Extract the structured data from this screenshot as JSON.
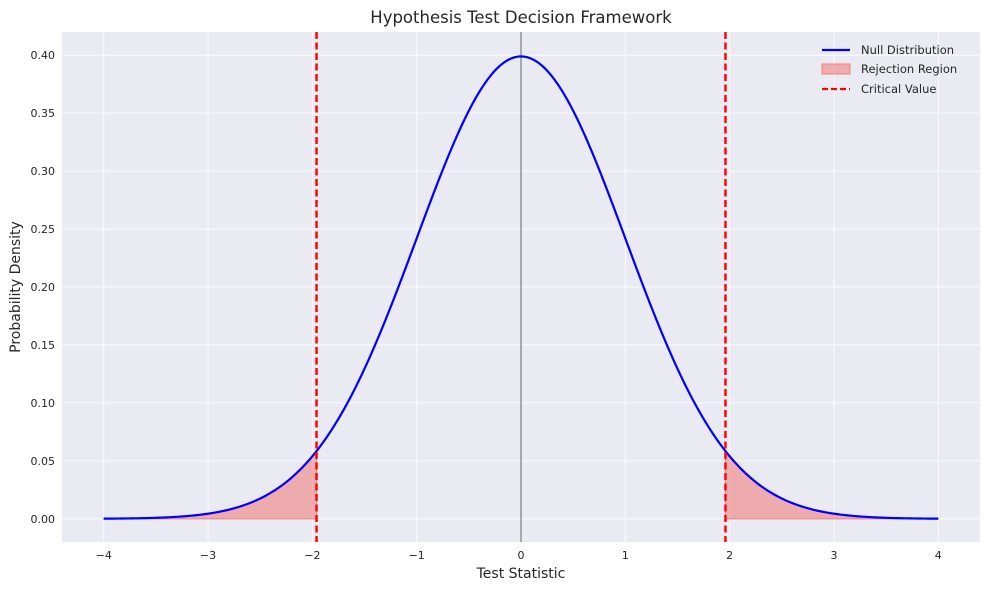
{
  "chart_data": {
    "type": "line",
    "title": "Hypothesis Test Decision Framework",
    "xlabel": "Test Statistic",
    "ylabel": "Probability Density",
    "xlim": [
      -4.4,
      4.4
    ],
    "ylim": [
      -0.02,
      0.42
    ],
    "x_ticks": [
      -4,
      -3,
      -2,
      -1,
      0,
      1,
      2,
      3,
      4
    ],
    "y_ticks": [
      0.0,
      0.05,
      0.1,
      0.15,
      0.2,
      0.25,
      0.3,
      0.35,
      0.4
    ],
    "grid": true,
    "legend_position": "top-right",
    "series": [
      {
        "name": "Null Distribution",
        "kind": "curve",
        "distribution": "standard normal",
        "x_range": [
          -4,
          4
        ],
        "color": "#0000ff",
        "points": [
          [
            -4.0,
            0.0001
          ],
          [
            -3.5,
            0.0009
          ],
          [
            -3.0,
            0.0044
          ],
          [
            -2.5,
            0.0175
          ],
          [
            -2.0,
            0.054
          ],
          [
            -1.96,
            0.0584
          ],
          [
            -1.5,
            0.1295
          ],
          [
            -1.0,
            0.242
          ],
          [
            -0.5,
            0.3521
          ],
          [
            0.0,
            0.3989
          ],
          [
            0.5,
            0.3521
          ],
          [
            1.0,
            0.242
          ],
          [
            1.5,
            0.1295
          ],
          [
            1.96,
            0.0584
          ],
          [
            2.0,
            0.054
          ],
          [
            2.5,
            0.0175
          ],
          [
            3.0,
            0.0044
          ],
          [
            3.5,
            0.0009
          ],
          [
            4.0,
            0.0001
          ]
        ]
      },
      {
        "name": "Rejection Region",
        "kind": "fill",
        "color": "#f08080",
        "ranges": [
          [
            -4.0,
            -1.96
          ],
          [
            1.96,
            4.0
          ]
        ]
      },
      {
        "name": "Critical Value",
        "kind": "vline",
        "color": "#ff0000",
        "x": [
          -1.96,
          1.96
        ]
      }
    ],
    "reference_line": {
      "x": 0,
      "color": "#000000"
    }
  }
}
